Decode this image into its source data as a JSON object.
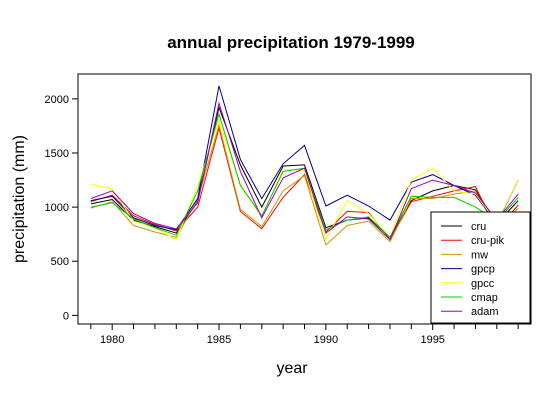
{
  "chart_data": {
    "type": "line",
    "title": "annual precipitation 1979-1999",
    "xlabel": "year",
    "ylabel": "precipitation (mm)",
    "xlim": [
      1978.4,
      1999.6
    ],
    "ylim": [
      -80,
      2230
    ],
    "x_ticks": [
      1980,
      1985,
      1990,
      1995
    ],
    "x_tick_labels": [
      "1980",
      "1985",
      "1990",
      "1995"
    ],
    "y_ticks": [
      0,
      500,
      1000,
      1500,
      2000
    ],
    "y_tick_labels": [
      "0",
      "500",
      "1000",
      "1500",
      "2000"
    ],
    "legend_position": "bottom-right",
    "x": [
      1979,
      1980,
      1981,
      1982,
      1983,
      1984,
      1985,
      1986,
      1987,
      1988,
      1989,
      1990,
      1991,
      1992,
      1993,
      1994,
      1995,
      1996,
      1997,
      1998,
      1999
    ],
    "series": [
      {
        "name": "cru",
        "color": "#000000",
        "values": [
          1030,
          1070,
          880,
          820,
          760,
          1060,
          1920,
          1390,
          1000,
          1380,
          1390,
          810,
          880,
          900,
          720,
          1060,
          1150,
          1200,
          1160,
          850,
          1060
        ]
      },
      {
        "name": "cru-pik",
        "color": "#ff0000",
        "values": [
          1050,
          1110,
          920,
          840,
          780,
          1000,
          1730,
          960,
          800,
          1090,
          1300,
          770,
          960,
          950,
          700,
          1050,
          1100,
          1150,
          1190,
          790,
          1020
        ]
      },
      {
        "name": "mw",
        "color": "#cc9900",
        "values": [
          990,
          1050,
          830,
          770,
          720,
          1070,
          1760,
          980,
          820,
          1150,
          1290,
          650,
          830,
          870,
          680,
          1080,
          1080,
          1120,
          1150,
          800,
          990
        ]
      },
      {
        "name": "gpcp",
        "color": "#00008b",
        "values": [
          1060,
          1100,
          900,
          830,
          790,
          1080,
          2120,
          1440,
          1080,
          1400,
          1570,
          1010,
          1110,
          1010,
          880,
          1230,
          1300,
          1200,
          1110,
          850,
          1250
        ]
      },
      {
        "name": "gpcc",
        "color": "#ffff00",
        "values": [
          1210,
          1170,
          870,
          810,
          700,
          1200,
          1800,
          1210,
          900,
          1350,
          1340,
          700,
          1060,
          940,
          720,
          1250,
          1360,
          1150,
          1120,
          860,
          1250
        ]
      },
      {
        "name": "cmap",
        "color": "#00cc00",
        "values": [
          1000,
          1040,
          890,
          810,
          740,
          1150,
          1860,
          1200,
          920,
          1330,
          1360,
          790,
          880,
          910,
          720,
          1100,
          1090,
          1090,
          1000,
          870,
          1090
        ]
      },
      {
        "name": "adam",
        "color": "#9900cc",
        "values": [
          1080,
          1150,
          940,
          850,
          800,
          1040,
          1960,
          1330,
          900,
          1270,
          1360,
          760,
          910,
          890,
          700,
          1170,
          1250,
          1200,
          1130,
          880,
          1120
        ]
      }
    ]
  }
}
